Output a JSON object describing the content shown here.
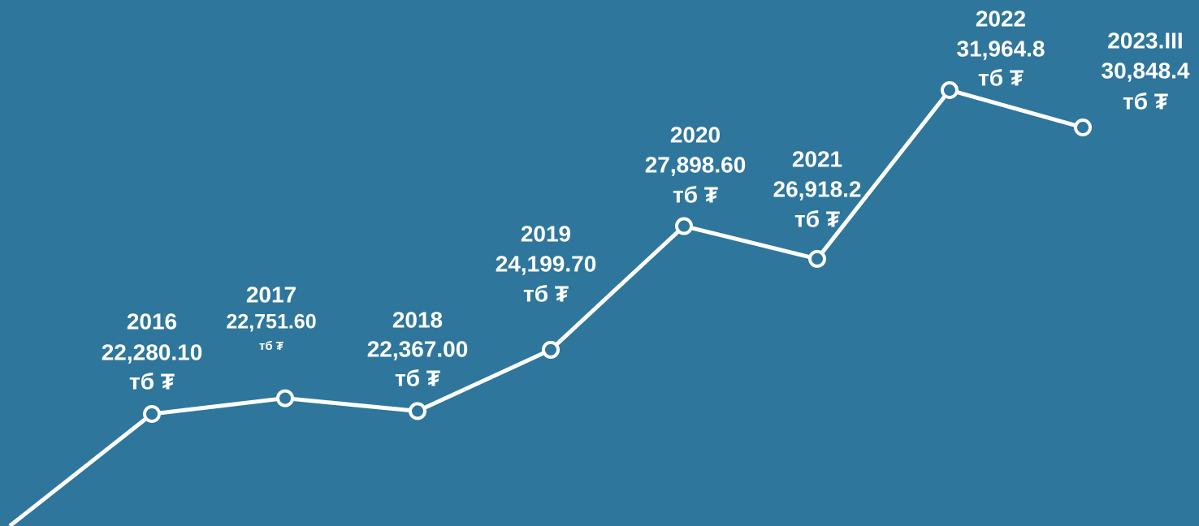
{
  "chart_data": {
    "type": "line",
    "categories": [
      "2016",
      "2017",
      "2018",
      "2019",
      "2020",
      "2021",
      "2022",
      "2023.III"
    ],
    "values": [
      22280.1,
      22751.6,
      22367.0,
      24199.7,
      27898.6,
      26918.2,
      31964.8,
      30848.4
    ],
    "value_labels": [
      "22,280.10",
      "22,751.60",
      "22,367.00",
      "24,199.70",
      "27,898.60",
      "26,918.2",
      "31,964.8",
      "30,848.4"
    ],
    "unit": "тб ₮",
    "color": "#ffffff",
    "ylim": [
      18930,
      34660
    ]
  }
}
